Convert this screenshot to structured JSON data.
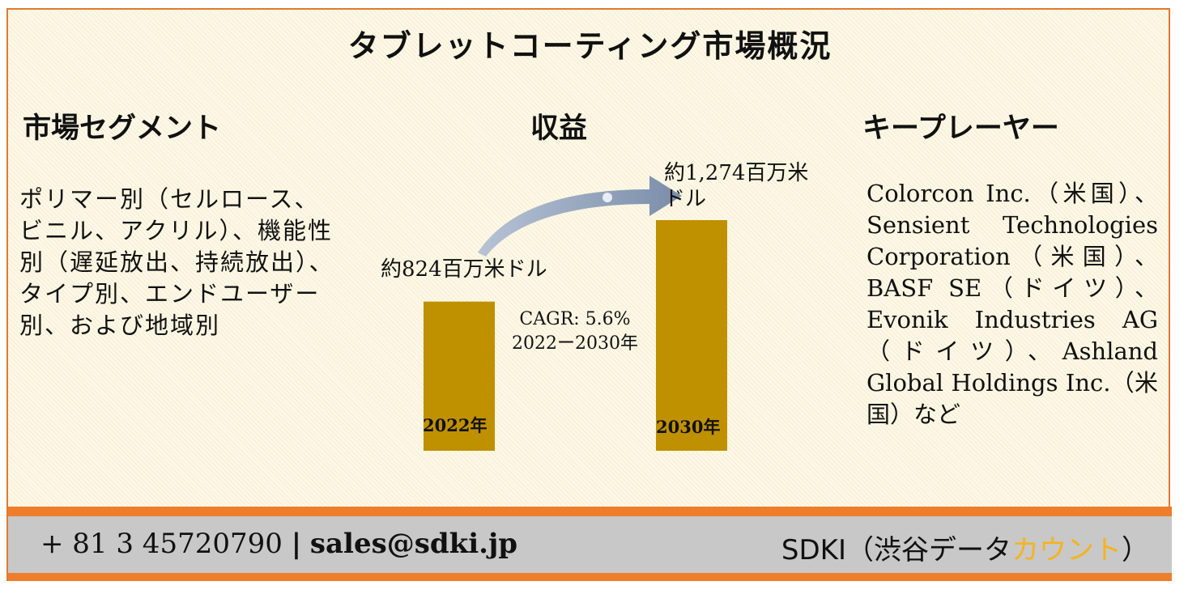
{
  "title": "タブレットコーティング市場概況",
  "segments": {
    "heading": "市場セグメント",
    "text": "ポリマー別（セルロース、ビニル、アクリル）、機能性別（遅延放出、持続放出）、タイプ別、エンドユーザー別、および地域別"
  },
  "revenue": {
    "heading": "収益",
    "cagr_line1": "CAGR: 5.6%",
    "cagr_line2": "2022ー2030年"
  },
  "chart_data": {
    "type": "bar",
    "categories": [
      "2022年",
      "2030年"
    ],
    "values": [
      824,
      1274
    ],
    "value_labels": [
      "約824百万米ドル",
      "約1,274百万米ドル"
    ],
    "unit": "百万米ドル",
    "bar_color": "#bf9000",
    "arrow_color": "#8496b0"
  },
  "players": {
    "heading": "キープレーヤー",
    "text": "Colorcon Inc.（米国）、Sensient Technologies Corporation（米国）、BASF SE（ドイツ）、Evonik Industries AG（ドイツ）、Ashland Global Holdings Inc.（米国）など"
  },
  "footer": {
    "phone": "+ 81 3 45720790",
    "separator": "|",
    "email": "sales@sdki.jp",
    "brand_main": "SDKI（渋谷データ",
    "brand_accent": "カウント",
    "brand_close": "）"
  },
  "colors": {
    "border": "#e07a2e",
    "footer_band": "#ee7d2c",
    "footer_bg": "#c8c8c8",
    "accent": "#f6b21f"
  }
}
